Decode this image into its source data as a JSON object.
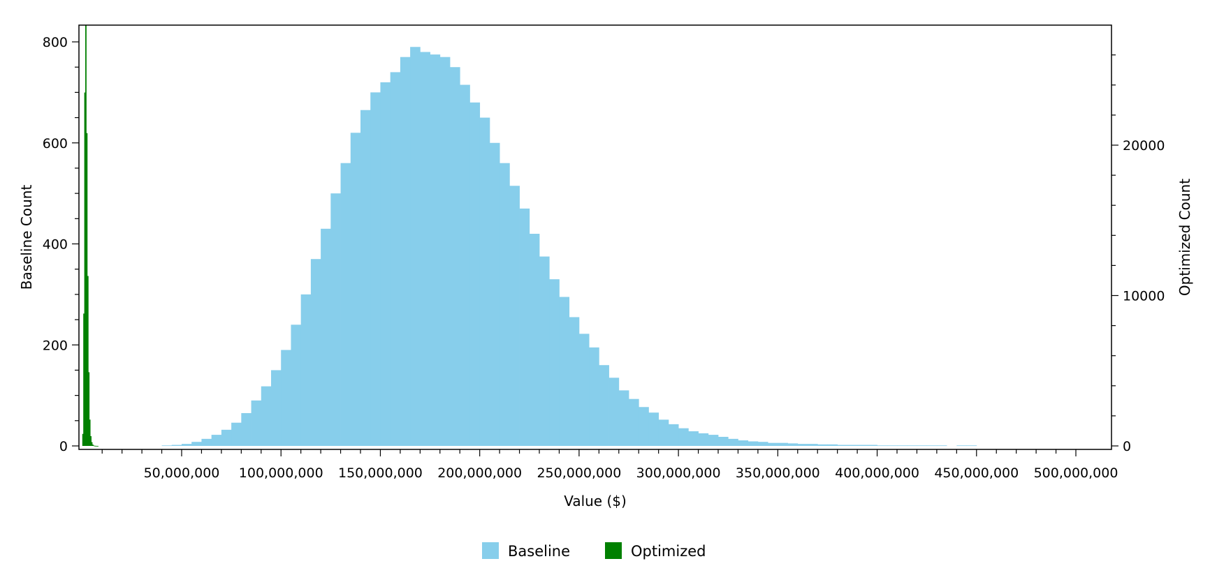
{
  "chart_data": {
    "type": "bar",
    "subtype": "histogram",
    "title": "",
    "xlabel": "Value ($)",
    "ylabel": "Baseline Count",
    "y2label": "Optimized Count",
    "xlim": [
      0,
      510000000
    ],
    "ylim": [
      0,
      830
    ],
    "y2lim": [
      0,
      28000
    ],
    "x_ticks": [
      50000000,
      100000000,
      150000000,
      200000000,
      250000000,
      300000000,
      350000000,
      400000000,
      450000000,
      500000000
    ],
    "x_tick_labels": [
      "50,000,000",
      "100,000,000",
      "150,000,000",
      "200,000,000",
      "250,000,000",
      "300,000,000",
      "350,000,000",
      "400,000,000",
      "450,000,000",
      "500,000,000"
    ],
    "y_ticks": [
      0,
      200,
      400,
      600,
      800
    ],
    "y_tick_labels": [
      "0",
      "200",
      "400",
      "600",
      "800"
    ],
    "y2_ticks": [
      0,
      10000,
      20000
    ],
    "y2_tick_labels": [
      "0",
      "10000",
      "20000"
    ],
    "grid": false,
    "legend_position": "bottom-center",
    "series": [
      {
        "name": "Baseline",
        "axis": "left",
        "color": "#87ceeb",
        "x_start": [
          40000000,
          45000000,
          50000000,
          55000000,
          60000000,
          65000000,
          70000000,
          75000000,
          80000000,
          85000000,
          90000000,
          95000000,
          100000000,
          105000000,
          110000000,
          115000000,
          120000000,
          125000000,
          130000000,
          135000000,
          140000000,
          145000000,
          150000000,
          155000000,
          160000000,
          165000000,
          170000000,
          175000000,
          180000000,
          185000000,
          190000000,
          195000000,
          200000000,
          205000000,
          210000000,
          215000000,
          220000000,
          225000000,
          230000000,
          235000000,
          240000000,
          245000000,
          250000000,
          255000000,
          260000000,
          265000000,
          270000000,
          275000000,
          280000000,
          285000000,
          290000000,
          295000000,
          300000000,
          305000000,
          310000000,
          315000000,
          320000000,
          325000000,
          330000000,
          335000000,
          340000000,
          345000000,
          350000000,
          355000000,
          360000000,
          365000000,
          370000000,
          375000000,
          380000000,
          385000000,
          390000000,
          395000000,
          400000000,
          405000000,
          410000000,
          415000000,
          420000000,
          425000000,
          430000000,
          435000000,
          440000000,
          445000000
        ],
        "bin_width": 5000000,
        "values": [
          1,
          2,
          4,
          8,
          14,
          22,
          32,
          46,
          65,
          90,
          118,
          150,
          190,
          240,
          300,
          370,
          430,
          500,
          560,
          620,
          665,
          700,
          720,
          740,
          770,
          790,
          780,
          775,
          770,
          750,
          715,
          680,
          650,
          600,
          560,
          515,
          470,
          420,
          375,
          330,
          295,
          255,
          222,
          195,
          160,
          135,
          110,
          93,
          77,
          66,
          52,
          43,
          35,
          29,
          25,
          22,
          18,
          14,
          11,
          9,
          8,
          6,
          6,
          5,
          4,
          4,
          3,
          3,
          2,
          2,
          2,
          2,
          1,
          1,
          1,
          1,
          1,
          1,
          1,
          0,
          1,
          1
        ]
      },
      {
        "name": "Optimized",
        "axis": "right",
        "color": "#008000",
        "x_start": [
          0,
          500000,
          1000000,
          1500000,
          2000000,
          2500000,
          3000000,
          3500000,
          4000000,
          4500000,
          5000000,
          5500000,
          6000000,
          6500000,
          7000000,
          7500000,
          8000000,
          8500000,
          9000000
        ],
        "bin_width": 500000,
        "values": [
          800,
          8800,
          23500,
          28000,
          20800,
          11300,
          4900,
          1750,
          650,
          250,
          90,
          30,
          10,
          5,
          2,
          1,
          0,
          0,
          0
        ]
      }
    ]
  },
  "legend": {
    "items": [
      {
        "label": "Baseline",
        "color": "#87ceeb"
      },
      {
        "label": "Optimized",
        "color": "#008000"
      }
    ]
  }
}
